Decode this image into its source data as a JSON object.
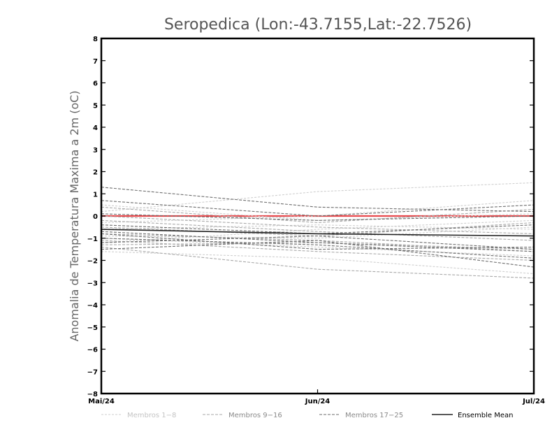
{
  "chart_data": {
    "type": "line",
    "title": "Seropedica (Lon:-43.7155,Lat:-22.7526)",
    "ylabel": "Anomalia de Temperatura Maxima a 2m (oC)",
    "xlabel": "",
    "categories": [
      "Mai/24",
      "Jun/24",
      "Jul/24"
    ],
    "ylim": [
      -8,
      8
    ],
    "yticks": [
      -8,
      -7,
      -6,
      -5,
      -4,
      -3,
      -2,
      -1,
      0,
      1,
      2,
      3,
      4,
      5,
      6,
      7,
      8
    ],
    "grid": false,
    "legend_position": "bottom",
    "reference_line": {
      "y": 0,
      "color": "#e8484c"
    },
    "groups": [
      {
        "name": "Membros 1-8",
        "color": "#cfcfcf"
      },
      {
        "name": "Membros 9-16",
        "color": "#a9a9a9"
      },
      {
        "name": "Membros 17-25",
        "color": "#6e6e6e"
      },
      {
        "name": "Ensemble Mean",
        "color": "#222222"
      }
    ],
    "series": [
      {
        "group": 0,
        "values": [
          0.2,
          1.1,
          1.5
        ]
      },
      {
        "group": 0,
        "values": [
          -0.3,
          0.0,
          0.7
        ]
      },
      {
        "group": 0,
        "values": [
          -0.6,
          -0.4,
          -0.6
        ]
      },
      {
        "group": 0,
        "values": [
          -0.9,
          -1.0,
          -0.5
        ]
      },
      {
        "group": 0,
        "values": [
          -1.0,
          -1.4,
          -1.8
        ]
      },
      {
        "group": 0,
        "values": [
          -1.6,
          -1.9,
          -2.6
        ]
      },
      {
        "group": 0,
        "values": [
          -1.2,
          -0.6,
          -0.2
        ]
      },
      {
        "group": 0,
        "values": [
          0.5,
          -0.2,
          0.1
        ]
      },
      {
        "group": 1,
        "values": [
          0.4,
          -0.3,
          0.3
        ]
      },
      {
        "group": 1,
        "values": [
          -0.2,
          -0.7,
          -1.1
        ]
      },
      {
        "group": 1,
        "values": [
          -0.8,
          -1.1,
          -1.6
        ]
      },
      {
        "group": 1,
        "values": [
          -1.1,
          -1.6,
          -2.0
        ]
      },
      {
        "group": 1,
        "values": [
          -1.4,
          -2.4,
          -2.8
        ]
      },
      {
        "group": 1,
        "values": [
          -0.5,
          -0.9,
          -0.3
        ]
      },
      {
        "group": 1,
        "values": [
          -1.3,
          -1.2,
          -1.5
        ]
      },
      {
        "group": 1,
        "values": [
          0.0,
          -0.5,
          -0.8
        ]
      },
      {
        "group": 2,
        "values": [
          1.3,
          0.4,
          0.2
        ]
      },
      {
        "group": 2,
        "values": [
          0.7,
          0.0,
          0.5
        ]
      },
      {
        "group": 2,
        "values": [
          0.1,
          -0.2,
          0.0
        ]
      },
      {
        "group": 2,
        "values": [
          -0.4,
          -0.8,
          -0.4
        ]
      },
      {
        "group": 2,
        "values": [
          -0.7,
          -1.2,
          -1.6
        ]
      },
      {
        "group": 2,
        "values": [
          -1.0,
          -1.3,
          -1.9
        ]
      },
      {
        "group": 2,
        "values": [
          -1.5,
          -1.1,
          -2.3
        ]
      },
      {
        "group": 2,
        "values": [
          -0.8,
          -1.5,
          -1.4
        ]
      },
      {
        "group": 2,
        "values": [
          -1.2,
          -0.9,
          -1.5
        ]
      },
      {
        "group": 3,
        "values": [
          -0.6,
          -0.8,
          -0.9
        ]
      }
    ]
  }
}
